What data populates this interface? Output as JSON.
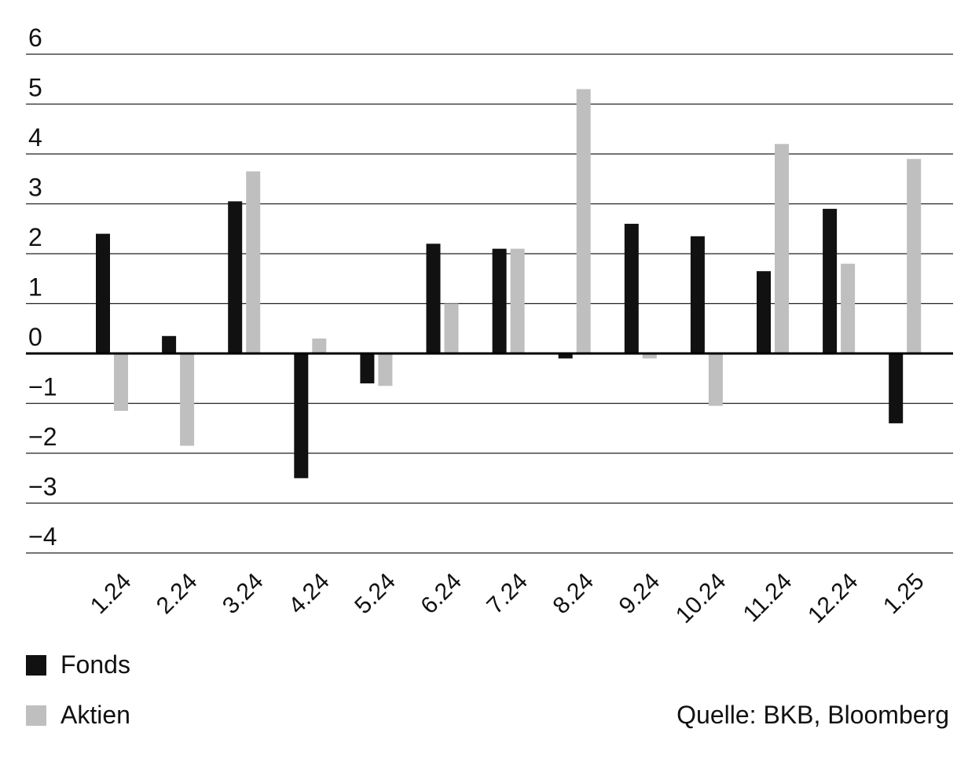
{
  "chart_data": {
    "type": "bar",
    "title": "",
    "xlabel": "",
    "ylabel": "",
    "ylim": [
      -4,
      6
    ],
    "yticks": [
      6,
      5,
      4,
      3,
      2,
      1,
      0,
      -1,
      -2,
      -3,
      -4
    ],
    "ytick_labels": [
      "6",
      "5",
      "4",
      "3",
      "2",
      "1",
      "0",
      "−1",
      "−2",
      "−3",
      "−4"
    ],
    "grid": true,
    "legend_position": "bottom-left",
    "categories": [
      "1.24",
      "2.24",
      "3.24",
      "4.24",
      "5.24",
      "6.24",
      "7.24",
      "8.24",
      "9.24",
      "10.24",
      "11.24",
      "12.24",
      "1.25"
    ],
    "series": [
      {
        "name": "Fonds",
        "color": "#111111",
        "values": [
          2.4,
          0.35,
          3.05,
          -2.5,
          -0.6,
          2.2,
          2.1,
          -0.1,
          2.6,
          2.35,
          1.65,
          2.9,
          -1.4
        ]
      },
      {
        "name": "Aktien",
        "color": "#bfbfbf",
        "values": [
          -1.15,
          -1.85,
          3.65,
          0.3,
          -0.65,
          1.0,
          2.1,
          5.3,
          -0.1,
          -1.05,
          4.2,
          1.8,
          3.9
        ]
      }
    ]
  },
  "source": "Quelle: BKB, Bloomberg"
}
